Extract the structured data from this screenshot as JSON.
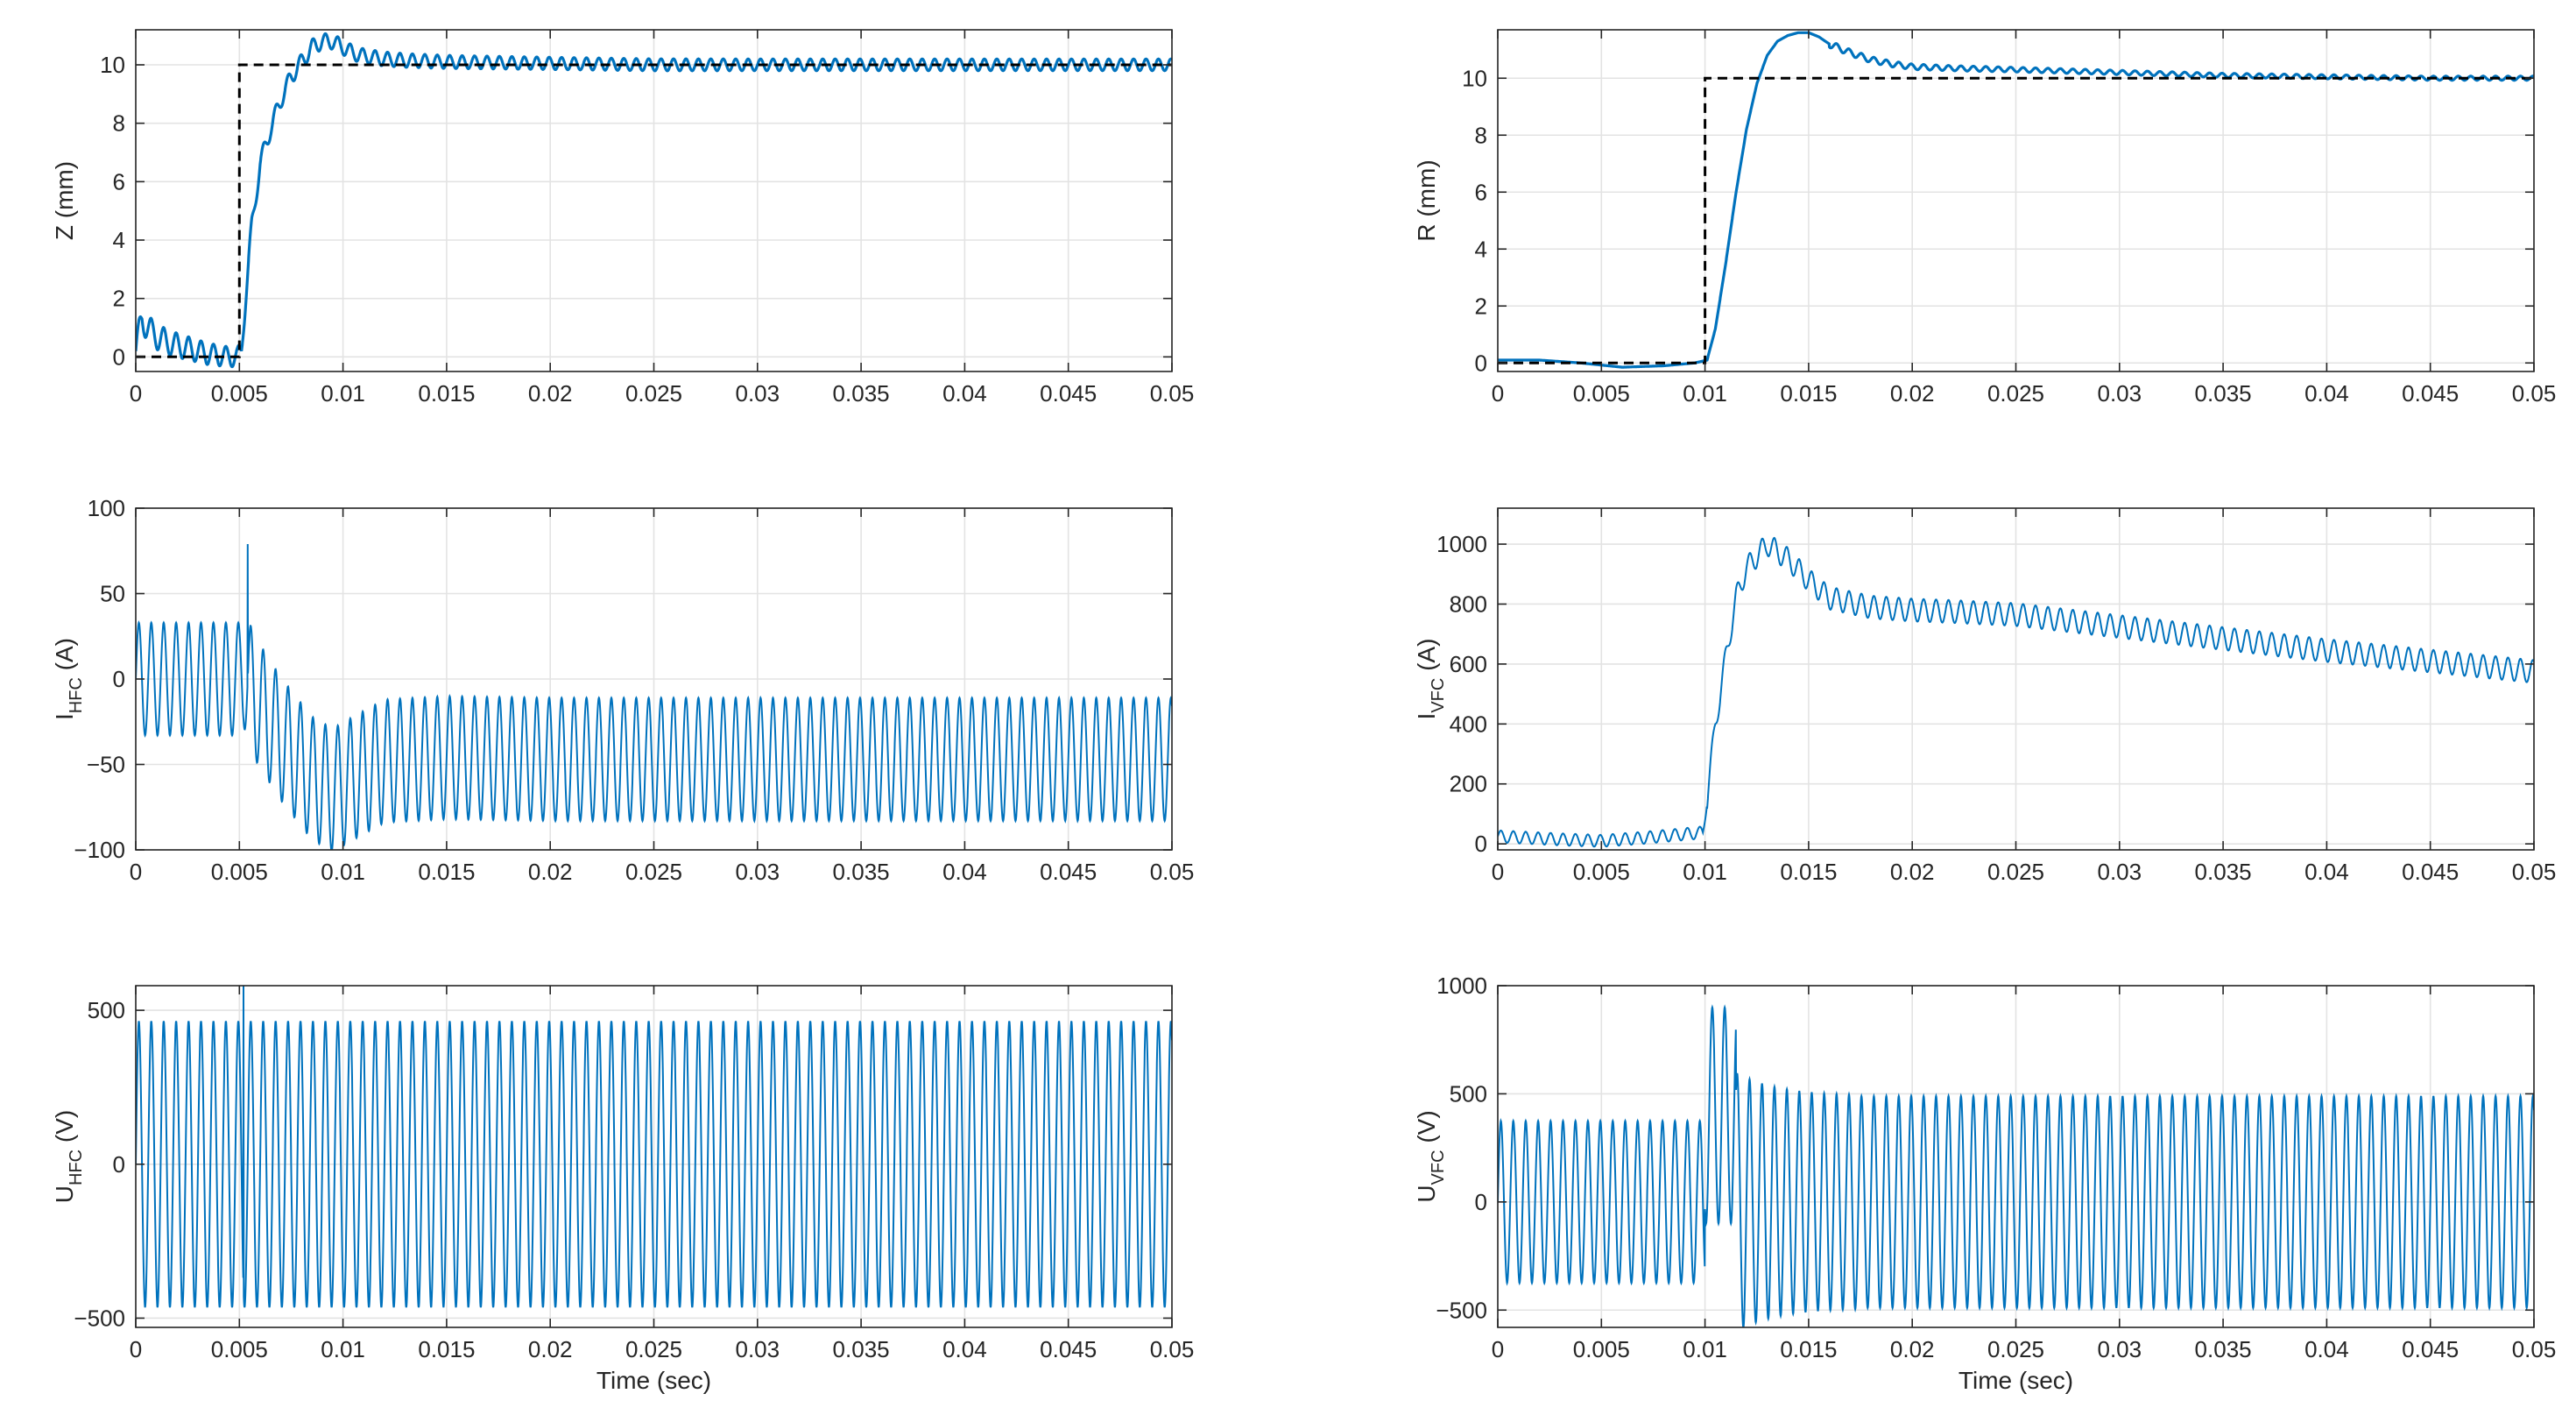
{
  "figure": {
    "title": ""
  },
  "colors": {
    "signal": "#0072BD",
    "reference": "#000000",
    "grid": "#e3e3e3",
    "axis": "#262626"
  },
  "chart_data": [
    {
      "type": "line",
      "id": "z",
      "ylabel": "Z (mm)",
      "ylabel_main": "Z (mm)",
      "ylabel_sub": "",
      "xlabel": "",
      "xlim": [
        0,
        0.05
      ],
      "ylim": [
        -0.5,
        11.2
      ],
      "xticks": [
        0,
        0.005,
        0.01,
        0.015,
        0.02,
        0.025,
        0.03,
        0.035,
        0.04,
        0.045,
        0.05
      ],
      "xtick_labels": [
        "0",
        "0.005",
        "0.01",
        "0.015",
        "0.02",
        "0.025",
        "0.03",
        "0.035",
        "0.04",
        "0.045",
        "0.05"
      ],
      "yticks": [
        0,
        2,
        4,
        6,
        8,
        10
      ],
      "ytick_labels": [
        "0",
        "2",
        "4",
        "6",
        "8",
        "10"
      ],
      "grid": true,
      "series": [
        {
          "name": "Z",
          "style": "solid",
          "x": [
            0,
            0.0003,
            0.0008,
            0.0015,
            0.0025,
            0.0035,
            0.0045,
            0.0049,
            0.0051,
            0.0053,
            0.0056,
            0.006,
            0.0065,
            0.007,
            0.0075,
            0.008,
            0.0085,
            0.009,
            0.0095,
            0.01,
            0.0105,
            0.011,
            0.012,
            0.013,
            0.015,
            0.02,
            0.025,
            0.03,
            0.035,
            0.04,
            0.045,
            0.05
          ],
          "y": [
            0.2,
            1.3,
            0.8,
            0.5,
            0.3,
            0.1,
            0,
            0,
            0.2,
            2,
            4.5,
            6.6,
            7.8,
            8.8,
            9.6,
            10.1,
            10.6,
            10.8,
            10.8,
            10.6,
            10.4,
            10.3,
            10.2,
            10.15,
            10.1,
            10.05,
            10,
            10,
            10,
            10,
            10,
            10
          ],
          "ripple": {
            "amplitude": 0.5,
            "decay": 0.4,
            "period": 0.0006,
            "start": 0
          }
        },
        {
          "name": "Z reference",
          "style": "dashed",
          "x": [
            0,
            0.005,
            0.005,
            0.05
          ],
          "y": [
            0,
            0,
            10,
            10
          ]
        }
      ]
    },
    {
      "type": "line",
      "id": "ihfc",
      "ylabel": "IHFC (A)",
      "ylabel_main": "I",
      "ylabel_sub": "HFC",
      "ylabel_unit": " (A)",
      "xlabel": "",
      "xlim": [
        0,
        0.05
      ],
      "ylim": [
        -100,
        100
      ],
      "xticks": [
        0,
        0.005,
        0.01,
        0.015,
        0.02,
        0.025,
        0.03,
        0.035,
        0.04,
        0.045,
        0.05
      ],
      "xtick_labels": [
        "0",
        "0.005",
        "0.01",
        "0.015",
        "0.02",
        "0.025",
        "0.03",
        "0.035",
        "0.04",
        "0.045",
        "0.05"
      ],
      "yticks": [
        -100,
        -50,
        0,
        50,
        100
      ],
      "ytick_labels": [
        "−100",
        "−50",
        "0",
        "50",
        "100"
      ],
      "grid": true,
      "series": [
        {
          "name": "IHFC",
          "style": "solid",
          "x": [
            0,
            0.005,
            0.0052,
            0.0058,
            0.007,
            0.0085,
            0.0095,
            0.0105,
            0.012,
            0.015,
            0.02,
            0.03,
            0.04,
            0.05
          ],
          "y": [
            0,
            0,
            5,
            -12,
            -35,
            -58,
            -65,
            -58,
            -48,
            -46,
            -47,
            -47,
            -47,
            -47
          ],
          "oscillation": {
            "period": 0.0006,
            "amplitude_before": 33,
            "amplitude_after": 36,
            "switch_time": 0.0055
          },
          "spike": {
            "x": 0.0054,
            "y": 79
          }
        }
      ]
    },
    {
      "type": "line",
      "id": "uhfc",
      "ylabel": "UHFC (V)",
      "ylabel_main": "U",
      "ylabel_sub": "HFC",
      "ylabel_unit": " (V)",
      "xlabel": "Time (sec)",
      "xlim": [
        0,
        0.05
      ],
      "ylim": [
        -530,
        580
      ],
      "xticks": [
        0,
        0.005,
        0.01,
        0.015,
        0.02,
        0.025,
        0.03,
        0.035,
        0.04,
        0.045,
        0.05
      ],
      "xtick_labels": [
        "0",
        "0.005",
        "0.01",
        "0.015",
        "0.02",
        "0.025",
        "0.03",
        "0.035",
        "0.04",
        "0.045",
        "0.05"
      ],
      "yticks": [
        -500,
        0,
        500
      ],
      "ytick_labels": [
        "−500",
        "0",
        "500"
      ],
      "grid": true,
      "series": [
        {
          "name": "UHFC",
          "style": "solid",
          "x": [
            0,
            0.05
          ],
          "y": [
            0,
            0
          ],
          "oscillation": {
            "period": 0.0006,
            "amplitude_before": 465,
            "amplitude_after": 465,
            "switch_time": 0.0052
          },
          "spike": {
            "x": 0.0052,
            "y": 580
          }
        }
      ]
    },
    {
      "type": "line",
      "id": "r",
      "ylabel": "R (mm)",
      "ylabel_main": "R (mm)",
      "ylabel_sub": "",
      "xlabel": "",
      "xlim": [
        0,
        0.05
      ],
      "ylim": [
        -0.3,
        11.7
      ],
      "xticks": [
        0,
        0.005,
        0.01,
        0.015,
        0.02,
        0.025,
        0.03,
        0.035,
        0.04,
        0.045,
        0.05
      ],
      "xtick_labels": [
        "0",
        "0.005",
        "0.01",
        "0.015",
        "0.02",
        "0.025",
        "0.03",
        "0.035",
        "0.04",
        "0.045",
        "0.05"
      ],
      "yticks": [
        0,
        2,
        4,
        6,
        8,
        10
      ],
      "ytick_labels": [
        "0",
        "2",
        "4",
        "6",
        "8",
        "10"
      ],
      "grid": true,
      "series": [
        {
          "name": "R",
          "style": "solid",
          "x": [
            0,
            0.002,
            0.004,
            0.006,
            0.008,
            0.0095,
            0.0101,
            0.0105,
            0.011,
            0.0115,
            0.012,
            0.0125,
            0.013,
            0.0135,
            0.014,
            0.0145,
            0.015,
            0.0155,
            0.016,
            0.017,
            0.018,
            0.019,
            0.02,
            0.022,
            0.025,
            0.03,
            0.035,
            0.04,
            0.045,
            0.05
          ],
          "y": [
            0.1,
            0.1,
            0,
            -0.15,
            -0.1,
            0,
            0.1,
            1.2,
            3.5,
            6,
            8.2,
            9.8,
            10.8,
            11.3,
            11.5,
            11.6,
            11.6,
            11.45,
            11.2,
            10.9,
            10.65,
            10.5,
            10.4,
            10.35,
            10.3,
            10.2,
            10.1,
            10.05,
            10,
            10
          ],
          "ripple": {
            "amplitude": 0.12,
            "decay": 0.6,
            "period": 0.0006,
            "start": 0.016
          }
        },
        {
          "name": "R reference",
          "style": "dashed",
          "x": [
            0,
            0.01,
            0.01,
            0.05
          ],
          "y": [
            0,
            0,
            10,
            10
          ]
        }
      ]
    },
    {
      "type": "line",
      "id": "ivfc",
      "ylabel": "IVFC (A)",
      "ylabel_main": "I",
      "ylabel_sub": "VFC",
      "ylabel_unit": " (A)",
      "xlabel": "",
      "xlim": [
        0,
        0.05
      ],
      "ylim": [
        -20,
        1120
      ],
      "xticks": [
        0,
        0.005,
        0.01,
        0.015,
        0.02,
        0.025,
        0.03,
        0.035,
        0.04,
        0.045,
        0.05
      ],
      "xtick_labels": [
        "0",
        "0.005",
        "0.01",
        "0.015",
        "0.02",
        "0.025",
        "0.03",
        "0.035",
        "0.04",
        "0.045",
        "0.05"
      ],
      "yticks": [
        0,
        200,
        400,
        600,
        800,
        1000
      ],
      "ytick_labels": [
        "0",
        "200",
        "400",
        "600",
        "800",
        "1000"
      ],
      "grid": true,
      "series": [
        {
          "name": "IVFC",
          "style": "solid",
          "x": [
            0,
            0.003,
            0.005,
            0.007,
            0.0099,
            0.0101,
            0.0105,
            0.011,
            0.0115,
            0.012,
            0.013,
            0.014,
            0.015,
            0.016,
            0.018,
            0.02,
            0.022,
            0.025,
            0.03,
            0.035,
            0.04,
            0.045,
            0.05
          ],
          "y": [
            25,
            15,
            10,
            20,
            38,
            150,
            400,
            620,
            820,
            920,
            1000,
            950,
            880,
            820,
            790,
            780,
            775,
            765,
            725,
            685,
            645,
            610,
            575
          ],
          "oscillation": {
            "period": 0.0006,
            "amplitude_before": 20,
            "amplitude_after": 38,
            "switch_time": 0.0101
          }
        }
      ]
    },
    {
      "type": "line",
      "id": "uvfc",
      "ylabel": "UVFC (V)",
      "ylabel_main": "U",
      "ylabel_sub": "VFC",
      "ylabel_unit": " (V)",
      "xlabel": "Time (sec)",
      "xlim": [
        0,
        0.05
      ],
      "ylim": [
        -580,
        1000
      ],
      "xticks": [
        0,
        0.005,
        0.01,
        0.015,
        0.02,
        0.025,
        0.03,
        0.035,
        0.04,
        0.045,
        0.05
      ],
      "xtick_labels": [
        "0",
        "0.005",
        "0.01",
        "0.015",
        "0.02",
        "0.025",
        "0.03",
        "0.035",
        "0.04",
        "0.045",
        "0.05"
      ],
      "yticks": [
        -500,
        0,
        500,
        1000
      ],
      "ytick_labels": [
        "−500",
        "0",
        "500",
        "1000"
      ],
      "grid": true,
      "series": [
        {
          "name": "UVFC",
          "style": "solid",
          "x": [
            0,
            0.05
          ],
          "y": [
            0,
            0
          ],
          "oscillation": {
            "period": 0.0006,
            "amplitude_before": 375,
            "amplitude_after": 490,
            "switch_time": 0.01
          },
          "burst": {
            "start": 0.01,
            "end": 0.0115,
            "y_high": 900,
            "y_low": -100
          }
        }
      ]
    }
  ]
}
